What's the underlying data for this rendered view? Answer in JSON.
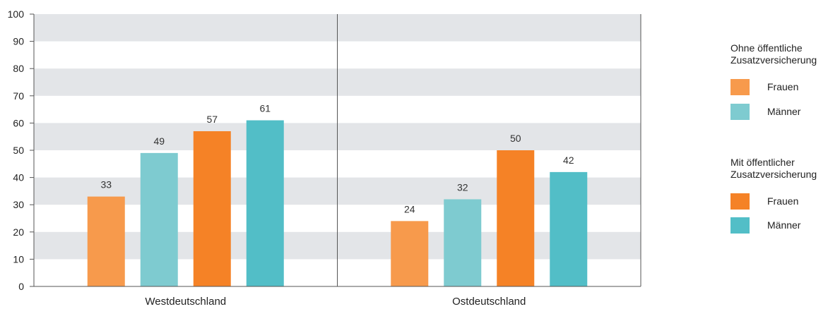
{
  "chart_data": {
    "type": "bar",
    "categories": [
      "Westdeutschland",
      "Ostdeutschland"
    ],
    "series": [
      {
        "group": "Ohne öffentliche Zusatzversicherung",
        "name": "Frauen",
        "color": "#F79A4C",
        "values": [
          33,
          24
        ]
      },
      {
        "group": "Ohne öffentliche Zusatzversicherung",
        "name": "Männer",
        "color": "#7ECBD0",
        "values": [
          49,
          32
        ]
      },
      {
        "group": "Mit öffentlicher Zusatzversicherung",
        "name": "Frauen",
        "color": "#F58226",
        "values": [
          57,
          50
        ]
      },
      {
        "group": "Mit öffentlicher Zusatzversicherung",
        "name": "Männer",
        "color": "#52BEC7",
        "values": [
          61,
          42
        ]
      }
    ],
    "ylim": [
      0,
      100
    ],
    "yticks": [
      0,
      10,
      20,
      30,
      40,
      50,
      60,
      70,
      80,
      90,
      100
    ],
    "grid": "alternating horizontal bands",
    "legend_placement": "right"
  },
  "legend": {
    "groups": [
      {
        "title_line1": "Ohne öffentliche",
        "title_line2": "Zusatzversicherung",
        "items": [
          {
            "label": "Frauen",
            "color": "#F79A4C"
          },
          {
            "label": "Männer",
            "color": "#7ECBD0"
          }
        ]
      },
      {
        "title_line1": "Mit öffentlicher",
        "title_line2": "Zusatzversicherung",
        "items": [
          {
            "label": "Frauen",
            "color": "#F58226"
          },
          {
            "label": "Männer",
            "color": "#52BEC7"
          }
        ]
      }
    ]
  },
  "colors": {
    "band": "#E3E5E8",
    "axis": "#555555",
    "label_text": "#333333"
  }
}
